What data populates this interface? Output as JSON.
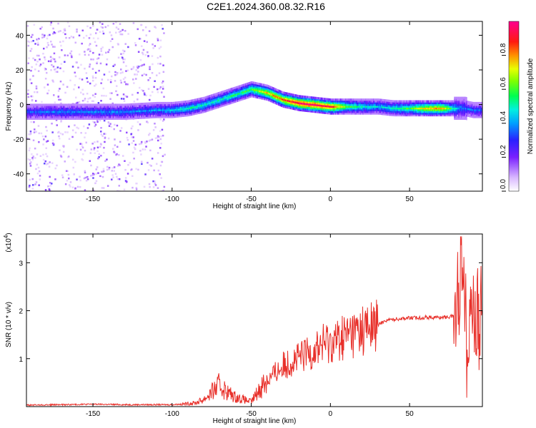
{
  "chart_data": [
    {
      "type": "heatmap",
      "title": "C2E1.2024.360.08.32.R16",
      "xlabel": "Height of straight line (km)",
      "ylabel": "Frequency (Hz)",
      "xlim": [
        -192,
        96
      ],
      "ylim": [
        -50,
        48
      ],
      "xticks": [
        "-150",
        "-100",
        "-50",
        "0",
        "50"
      ],
      "yticks": [
        "40",
        "20",
        "0",
        "-20",
        "-40"
      ],
      "grid": false,
      "colorbar": {
        "label": "Normalized spectral amplitude",
        "range": [
          0,
          1
        ],
        "ticks": [
          "0.0",
          "0.2",
          "0.4",
          "0.6",
          "0.8"
        ],
        "colors": [
          "#ffffff",
          "#b070ff",
          "#5000ff",
          "#0040ff",
          "#00e0ff",
          "#00ff60",
          "#a0ff00",
          "#ffe000",
          "#ff6000",
          "#ff0030",
          "#ff0090"
        ]
      },
      "ridge": {
        "description_points_x": [
          -192,
          -170,
          -150,
          -130,
          -110,
          -100,
          -90,
          -80,
          -70,
          -60,
          -50,
          -45,
          -40,
          -35,
          -30,
          -20,
          -10,
          0,
          10,
          20,
          30,
          40,
          50,
          60,
          70,
          80,
          85,
          90,
          96
        ],
        "frequency": [
          -4,
          -4,
          -4,
          -4,
          -3,
          -3,
          -2,
          0,
          3,
          6,
          9,
          8,
          7,
          5,
          3,
          1,
          0,
          -1,
          -1,
          -1,
          -1,
          -2,
          -2,
          -2,
          -2,
          -2,
          -2,
          -3,
          -3
        ],
        "amplitude": [
          0.35,
          0.38,
          0.38,
          0.38,
          0.4,
          0.45,
          0.5,
          0.5,
          0.5,
          0.55,
          0.6,
          0.7,
          0.75,
          0.8,
          0.85,
          0.95,
          0.95,
          0.9,
          0.6,
          0.5,
          0.45,
          0.5,
          0.6,
          0.75,
          0.8,
          0.4,
          0.35,
          0.35,
          0.35
        ]
      },
      "scatter_region_x": [
        -192,
        -105
      ]
    },
    {
      "type": "line",
      "xlabel": "Height of straight line (km)",
      "ylabel": "SNR (10 * v/v)",
      "exponent_label": "(x10",
      "exponent_sup": "4",
      "exponent_close": ")",
      "xlim": [
        -192,
        96
      ],
      "ylim": [
        0,
        3.6
      ],
      "xticks": [
        "-150",
        "-100",
        "-50",
        "0",
        "50"
      ],
      "yticks": [
        "3",
        "2",
        "1"
      ],
      "grid": false,
      "series": [
        {
          "color": "#e8302a",
          "x": [
            -192,
            -170,
            -150,
            -130,
            -110,
            -100,
            -95,
            -90,
            -85,
            -80,
            -75,
            -70,
            -65,
            -60,
            -55,
            -50,
            -48,
            -45,
            -42,
            -40,
            -38,
            -35,
            -30,
            -25,
            -20,
            -15,
            -10,
            -5,
            0,
            5,
            10,
            15,
            20,
            25,
            30,
            35,
            40,
            45,
            50,
            55,
            60,
            65,
            70,
            75,
            78,
            80,
            82,
            84,
            86,
            88,
            90,
            92,
            96
          ],
          "y": [
            0.03,
            0.04,
            0.05,
            0.04,
            0.04,
            0.04,
            0.05,
            0.06,
            0.08,
            0.15,
            0.3,
            0.45,
            0.3,
            0.2,
            0.15,
            0.1,
            0.2,
            0.35,
            0.5,
            0.55,
            0.6,
            0.7,
            0.85,
            0.95,
            1.0,
            1.1,
            1.2,
            1.3,
            1.35,
            1.4,
            1.5,
            1.55,
            1.6,
            1.65,
            1.7,
            1.8,
            1.82,
            1.84,
            1.85,
            1.85,
            1.86,
            1.86,
            1.86,
            1.87,
            1.9,
            2.2,
            2.8,
            3.4,
            1.2,
            2.3,
            1.9,
            1.8,
            1.85
          ]
        }
      ]
    }
  ]
}
